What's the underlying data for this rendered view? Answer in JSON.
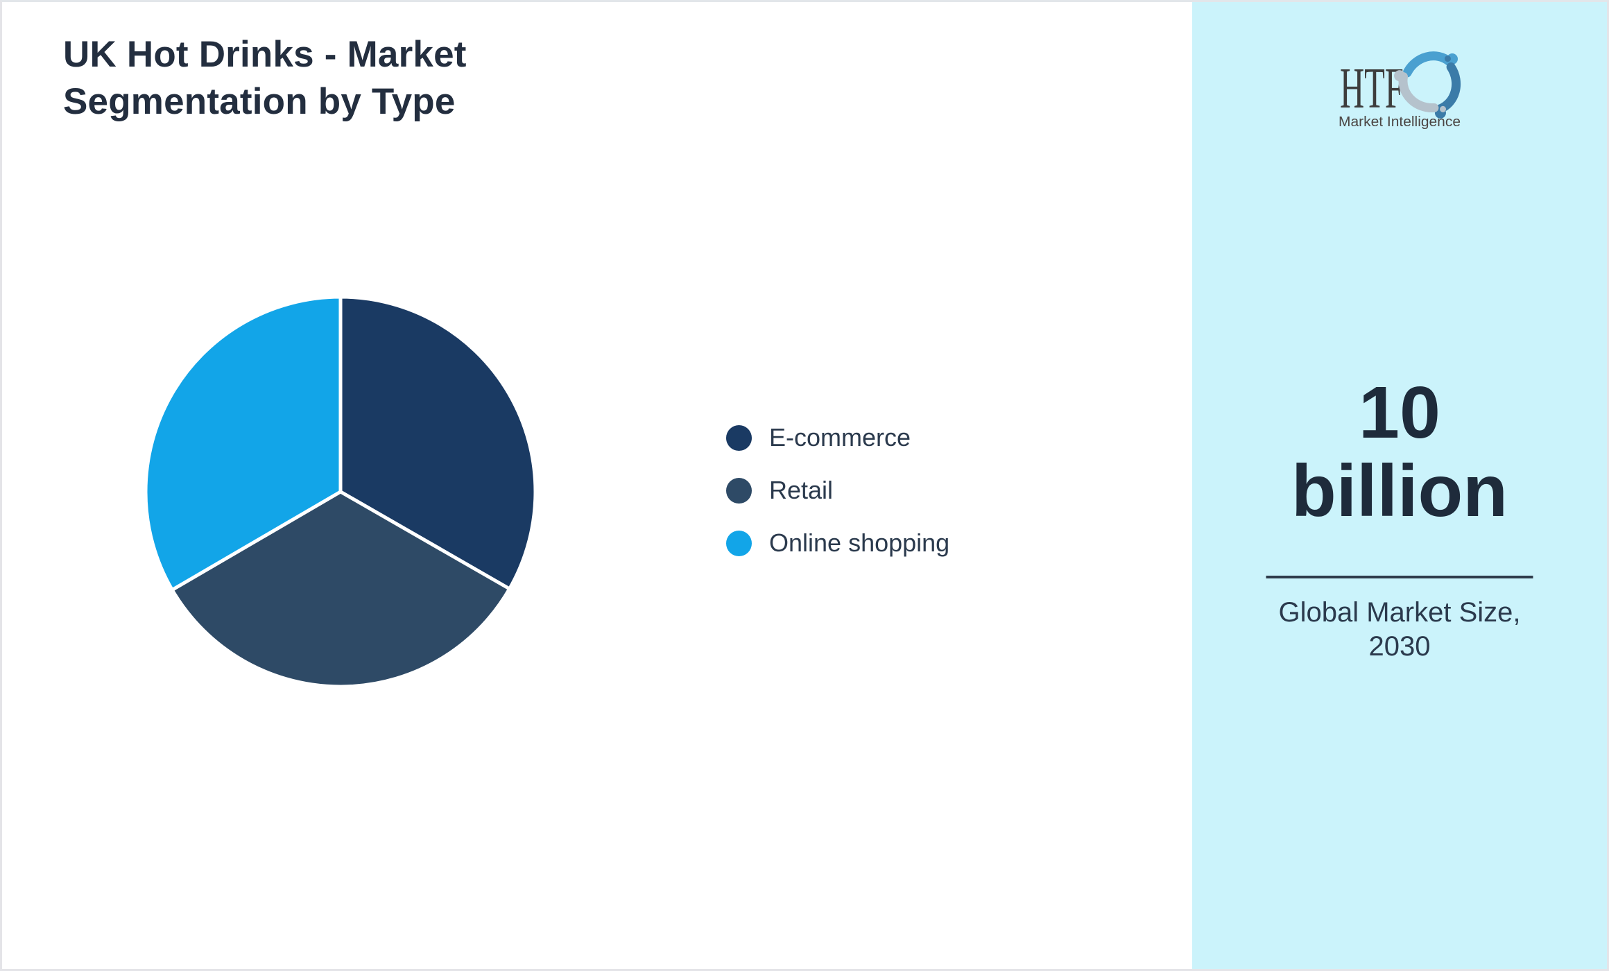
{
  "page": {
    "background": "#ffffff",
    "border_color": "#e4e4e8"
  },
  "chart_data": {
    "type": "pie",
    "title": "UK Hot Drinks - Market Segmentation by Type",
    "categories": [
      "E-commerce",
      "Retail",
      "Online shopping"
    ],
    "values": [
      33.3,
      33.3,
      33.4
    ],
    "values_note": "slices are unlabeled in the image; the three segments are visually equal thirds",
    "colors": [
      "#1a3a63",
      "#2e4a66",
      "#12a5e8"
    ],
    "start_angle": "12 o'clock",
    "direction": "clockwise",
    "slice_separator_color": "#ffffff",
    "legend_position": "right of chart",
    "data_labels_shown": false
  },
  "legend": {
    "items": [
      {
        "label": "E-commerce",
        "color": "#1a3a63"
      },
      {
        "label": "Retail",
        "color": "#2e4a66"
      },
      {
        "label": "Online shopping",
        "color": "#12a5e8"
      }
    ]
  },
  "sidebar": {
    "background": "#cbf3fb",
    "logo": {
      "brand": "HTF",
      "tagline": "Market Intelligence",
      "brand_color": "#3d3d3d",
      "figure_colors": [
        "#4aa0d0",
        "#3b7ba8",
        "#b5c2cc"
      ]
    },
    "stat": {
      "value": "10 billion",
      "caption": "Global Market Size, 2030"
    }
  }
}
